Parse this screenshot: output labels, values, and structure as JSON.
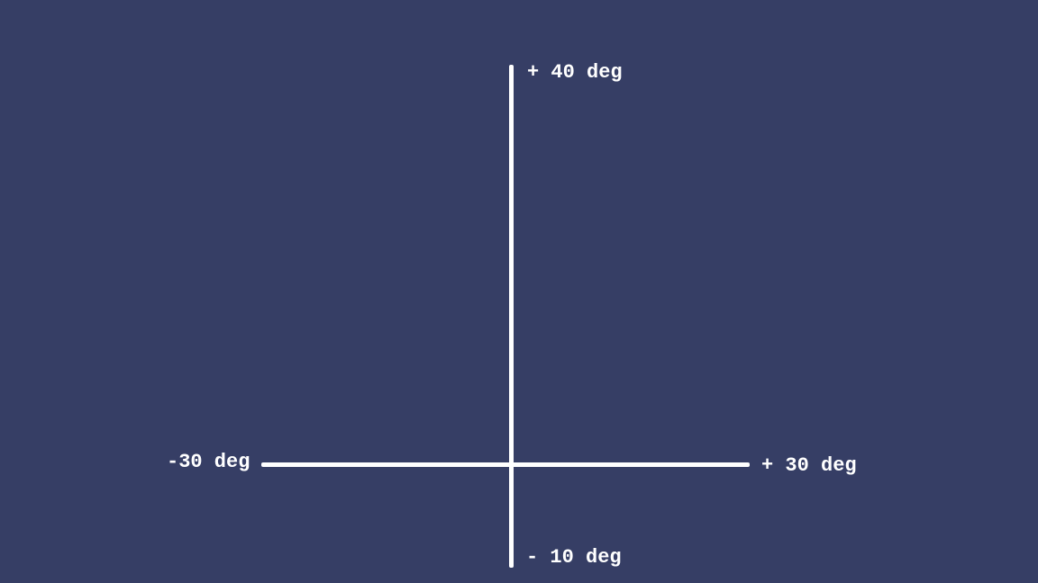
{
  "background_color": "#363e65",
  "axis_color": "#ffffff",
  "axes": {
    "vertical": {
      "max_label": "+ 40 deg",
      "min_label": "- 10 deg"
    },
    "horizontal": {
      "min_label": "-30 deg",
      "max_label": "+ 30 deg"
    }
  }
}
